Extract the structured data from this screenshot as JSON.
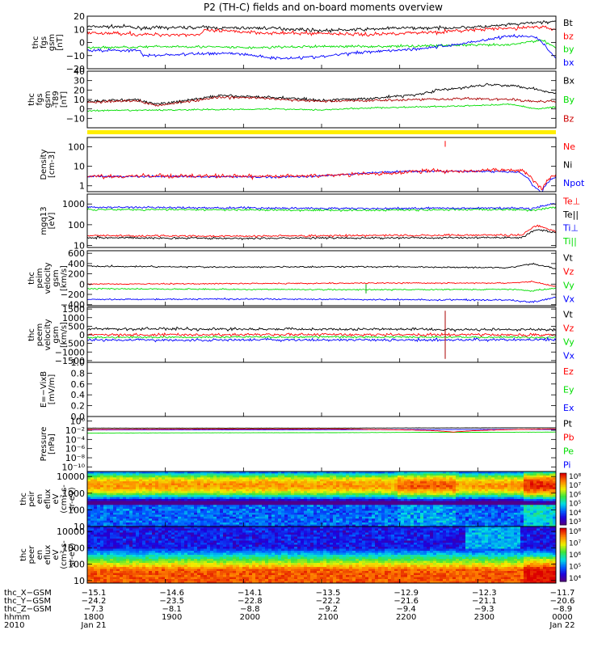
{
  "title": "P2 (TH-C) fields and on-board moments overview",
  "chart_data": [
    {
      "id": "fgs-gsm",
      "type": "line",
      "ylabel": [
        "thc",
        "fgs",
        "gsm",
        "[nT]"
      ],
      "ylim": [
        -20,
        20
      ],
      "yticks": [
        {
          "v": 20,
          "t": "20"
        },
        {
          "v": 10,
          "t": "10"
        },
        {
          "v": 0,
          "t": "0"
        },
        {
          "v": -10,
          "t": "−10"
        },
        {
          "v": -20,
          "t": "−20"
        }
      ],
      "legend": [
        {
          "name": "Bt",
          "color": "#000000"
        },
        {
          "name": "bz",
          "color": "#ff0000"
        },
        {
          "name": "by",
          "color": "#00dd00"
        },
        {
          "name": "bx",
          "color": "#0000ff"
        }
      ],
      "series": [
        {
          "name": "Bt",
          "color": "#000000",
          "noise": 1.2,
          "x": [
            0,
            0.09,
            0.1,
            0.25,
            0.28,
            0.38,
            0.45,
            0.5,
            0.6,
            0.66,
            0.75,
            0.85,
            0.92,
            0.95,
            1.0
          ],
          "y": [
            12,
            12,
            11,
            11.5,
            11,
            11,
            10,
            9,
            10,
            11,
            11,
            12,
            14,
            15,
            16
          ]
        },
        {
          "name": "bz",
          "color": "#ff0000",
          "noise": 1.4,
          "x": [
            0,
            0.09,
            0.1,
            0.24,
            0.25,
            0.35,
            0.4,
            0.5,
            0.6,
            0.66,
            0.75,
            0.85,
            0.92,
            0.96,
            1.0
          ],
          "y": [
            7,
            7,
            6,
            6,
            9,
            8,
            7,
            7,
            6,
            7,
            8,
            10,
            11,
            12,
            10
          ]
        },
        {
          "name": "by",
          "color": "#00dd00",
          "noise": 1.0,
          "x": [
            0,
            0.2,
            0.35,
            0.5,
            0.65,
            0.8,
            0.9,
            0.97,
            1.0
          ],
          "y": [
            -4,
            -3,
            -4,
            -3,
            -3,
            -2,
            -2,
            2,
            -4
          ]
        },
        {
          "name": "bx",
          "color": "#0000ff",
          "noise": 1.2,
          "x": [
            0,
            0.11,
            0.12,
            0.3,
            0.36,
            0.4,
            0.5,
            0.54,
            0.6,
            0.7,
            0.78,
            0.85,
            0.9,
            0.96,
            1.0
          ],
          "y": [
            -6,
            -6,
            -10,
            -8,
            -10,
            -12,
            -11,
            -9,
            -7,
            -5,
            -2,
            2,
            5,
            4,
            -12
          ]
        }
      ]
    },
    {
      "id": "fgs-sm",
      "type": "line",
      "ylabel": [
        "thc",
        "fgs",
        "gsm",
        "-T89",
        "[nT]"
      ],
      "ylim": [
        -20,
        40
      ],
      "yticks": [
        {
          "v": 40,
          "t": "40"
        },
        {
          "v": 30,
          "t": "30"
        },
        {
          "v": 20,
          "t": "20"
        },
        {
          "v": 10,
          "t": "10"
        },
        {
          "v": 0,
          "t": "0"
        },
        {
          "v": -10,
          "t": "−10"
        }
      ],
      "legend": [
        {
          "name": "Bx",
          "color": "#000000"
        },
        {
          "name": "By",
          "color": "#00dd00"
        },
        {
          "name": "Bz",
          "color": "#cc0000"
        }
      ],
      "series": [
        {
          "name": "By",
          "color": "#00dd00",
          "noise": 0.8,
          "x": [
            0,
            0.2,
            0.4,
            0.5,
            0.6,
            0.7,
            0.8,
            0.9,
            0.96,
            1.0
          ],
          "y": [
            -2,
            -1,
            0,
            -1,
            1,
            2,
            3,
            5,
            0,
            2
          ]
        },
        {
          "name": "Bx",
          "color": "#000000",
          "noise": 1.5,
          "x": [
            0,
            0.1,
            0.15,
            0.2,
            0.28,
            0.35,
            0.45,
            0.5,
            0.6,
            0.7,
            0.75,
            0.8,
            0.85,
            0.9,
            0.95,
            1.0
          ],
          "y": [
            8,
            10,
            5,
            8,
            14,
            13,
            11,
            9,
            11,
            15,
            20,
            22,
            26,
            25,
            22,
            16
          ]
        },
        {
          "name": "Bz",
          "color": "#aa0000",
          "noise": 1.4,
          "x": [
            0,
            0.1,
            0.15,
            0.2,
            0.28,
            0.35,
            0.45,
            0.5,
            0.6,
            0.7,
            0.8,
            0.9,
            0.95,
            1.0
          ],
          "y": [
            7,
            9,
            4,
            7,
            12,
            12,
            9,
            8,
            9,
            10,
            11,
            10,
            8,
            8
          ]
        }
      ]
    },
    {
      "id": "density",
      "type": "line",
      "log": true,
      "ylabel": [
        "Density",
        "[cm-3]"
      ],
      "ylim": [
        0.5,
        300
      ],
      "yticks": [
        {
          "v": 100,
          "t": "100"
        },
        {
          "v": 10,
          "t": "10"
        },
        {
          "v": 1,
          "t": "1"
        }
      ],
      "legend": [
        {
          "name": "Ne",
          "color": "#ff0000"
        },
        {
          "name": "Ni",
          "color": "#000000"
        },
        {
          "name": "Npot",
          "color": "#0000ff"
        }
      ],
      "series": [
        {
          "name": "Npot",
          "color": "#0000ff",
          "noise": 0.05,
          "x": [
            0,
            0.2,
            0.4,
            0.5,
            0.6,
            0.68,
            0.75,
            0.85,
            0.92,
            0.95,
            0.97,
            1.0
          ],
          "y": [
            3,
            3,
            2.8,
            3.2,
            4.5,
            5.5,
            5.5,
            5.5,
            5,
            1,
            0.4,
            3
          ]
        },
        {
          "name": "Ne",
          "color": "#ff0000",
          "noise": 0.1,
          "x": [
            0,
            0.2,
            0.4,
            0.5,
            0.6,
            0.66,
            0.72,
            0.8,
            0.9,
            0.93,
            0.95,
            0.97,
            1.0
          ],
          "y": [
            3,
            3.2,
            3,
            3.4,
            4,
            4.5,
            6,
            5.5,
            6.5,
            6,
            2,
            0.6,
            4
          ]
        }
      ]
    },
    {
      "id": "temperature",
      "type": "line",
      "log": true,
      "ylabel": [
        "mgq13",
        "[eV]"
      ],
      "ylim": [
        8,
        3000
      ],
      "yticks": [
        {
          "v": 1000,
          "t": "1000"
        },
        {
          "v": 100,
          "t": "100"
        },
        {
          "v": 10,
          "t": "10"
        }
      ],
      "legend": [
        {
          "name": "Te⊥",
          "color": "#ff0000"
        },
        {
          "name": "Te||",
          "color": "#000000"
        },
        {
          "name": "Ti⊥",
          "color": "#0000ff"
        },
        {
          "name": "Ti||",
          "color": "#00dd00"
        }
      ],
      "series": [
        {
          "name": "Ti||",
          "color": "#00dd00",
          "noise": 0.05,
          "x": [
            0,
            0.3,
            0.6,
            0.9,
            0.95,
            1.0
          ],
          "y": [
            550,
            520,
            500,
            550,
            480,
            700
          ]
        },
        {
          "name": "Ti⊥",
          "color": "#0000ff",
          "noise": 0.05,
          "x": [
            0,
            0.3,
            0.6,
            0.9,
            0.95,
            1.0
          ],
          "y": [
            700,
            650,
            600,
            650,
            600,
            1100
          ]
        },
        {
          "name": "Te||",
          "color": "#000000",
          "noise": 0.05,
          "x": [
            0,
            0.3,
            0.6,
            0.85,
            0.93,
            0.96,
            1.0
          ],
          "y": [
            24,
            22,
            23,
            24,
            24,
            60,
            40
          ]
        },
        {
          "name": "Te⊥",
          "color": "#ff0000",
          "noise": 0.05,
          "x": [
            0,
            0.3,
            0.6,
            0.85,
            0.93,
            0.96,
            1.0
          ],
          "y": [
            30,
            28,
            30,
            32,
            32,
            90,
            45
          ]
        }
      ]
    },
    {
      "id": "ion-velocity",
      "type": "line",
      "ylabel": [
        "thc",
        "peim",
        "velocity",
        "gsm",
        "[km/s]"
      ],
      "ylim": [
        -420,
        650
      ],
      "yticks": [
        {
          "v": 600,
          "t": "600"
        },
        {
          "v": 400,
          "t": "400"
        },
        {
          "v": 200,
          "t": "200"
        },
        {
          "v": 0,
          "t": "0"
        },
        {
          "v": -200,
          "t": "−200"
        },
        {
          "v": -400,
          "t": "−400"
        }
      ],
      "legend": [
        {
          "name": "Vt",
          "color": "#000000"
        },
        {
          "name": "Vz",
          "color": "#ff0000"
        },
        {
          "name": "Vy",
          "color": "#00dd00"
        },
        {
          "name": "Vx",
          "color": "#0000ff"
        }
      ],
      "series": [
        {
          "name": "Vt",
          "color": "#000000",
          "noise": 15,
          "x": [
            0,
            0.3,
            0.6,
            0.9,
            0.95,
            1.0
          ],
          "y": [
            350,
            330,
            340,
            320,
            400,
            300
          ]
        },
        {
          "name": "Vz",
          "color": "#ff0000",
          "noise": 12,
          "x": [
            0,
            0.3,
            0.6,
            0.9,
            0.95,
            1.0
          ],
          "y": [
            0,
            10,
            20,
            20,
            50,
            -50
          ]
        },
        {
          "name": "Vy",
          "color": "#00dd00",
          "noise": 12,
          "x": [
            0,
            0.3,
            0.6,
            0.9,
            0.95,
            1.0
          ],
          "y": [
            -90,
            -100,
            -110,
            -100,
            -130,
            -80
          ]
        },
        {
          "name": "Vx",
          "color": "#0000ff",
          "noise": 15,
          "x": [
            0,
            0.3,
            0.6,
            0.9,
            0.95,
            1.0
          ],
          "y": [
            -300,
            -290,
            -300,
            -310,
            -350,
            -250
          ]
        }
      ]
    },
    {
      "id": "electron-velocity",
      "type": "line",
      "ylabel": [
        "thc",
        "peem",
        "velocity",
        "gsm",
        "[km/s]"
      ],
      "ylim": [
        -1600,
        1600
      ],
      "yticks": [
        {
          "v": 1500,
          "t": "1500"
        },
        {
          "v": 1000,
          "t": "1000"
        },
        {
          "v": 500,
          "t": "500"
        },
        {
          "v": 0,
          "t": "0"
        },
        {
          "v": -500,
          "t": "−500"
        },
        {
          "v": -1000,
          "t": "−1000"
        },
        {
          "v": -1500,
          "t": "−1500"
        }
      ],
      "legend": [
        {
          "name": "Vt",
          "color": "#000000"
        },
        {
          "name": "Vz",
          "color": "#ff0000"
        },
        {
          "name": "Vy",
          "color": "#00dd00"
        },
        {
          "name": "Vx",
          "color": "#0000ff"
        }
      ],
      "series": [
        {
          "name": "Vt",
          "color": "#000000",
          "noise": 80,
          "x": [
            0,
            0.5,
            1.0
          ],
          "y": [
            350,
            330,
            300
          ]
        },
        {
          "name": "Vy",
          "color": "#00dd00",
          "noise": 60,
          "x": [
            0,
            0.5,
            1.0
          ],
          "y": [
            -150,
            -120,
            -150
          ]
        },
        {
          "name": "Vx",
          "color": "#0000ff",
          "noise": 80,
          "x": [
            0,
            0.5,
            1.0
          ],
          "y": [
            -300,
            -300,
            -280
          ]
        },
        {
          "name": "Vz",
          "color": "#ff0000",
          "noise": 80,
          "x": [
            0,
            0.5,
            1.0
          ],
          "y": [
            0,
            10,
            0
          ]
        }
      ]
    },
    {
      "id": "efield",
      "type": "line",
      "ylabel": [
        "E=−VixB",
        "[mV/m]"
      ],
      "ylim": [
        0,
        1
      ],
      "yticks": [
        {
          "v": 1.0,
          "t": "1.0"
        },
        {
          "v": 0.8,
          "t": "0.8"
        },
        {
          "v": 0.6,
          "t": "0.6"
        },
        {
          "v": 0.4,
          "t": "0.4"
        },
        {
          "v": 0.2,
          "t": "0.2"
        },
        {
          "v": 0.0,
          "t": "0.0"
        }
      ],
      "legend": [
        {
          "name": "Ez",
          "color": "#ff0000"
        },
        {
          "name": "Ey",
          "color": "#00dd00"
        },
        {
          "name": "Ex",
          "color": "#0000ff"
        }
      ],
      "series": []
    },
    {
      "id": "pressure",
      "type": "line",
      "log": true,
      "ylabel": [
        "Pressure",
        "[nPa]"
      ],
      "ylim": [
        1e-11,
        10
      ],
      "yticks": [
        {
          "v": 1,
          "t": "10⁰"
        },
        {
          "v": 0.01,
          "t": "10⁻²"
        },
        {
          "v": 0.0001,
          "t": "10⁻⁴"
        },
        {
          "v": 1e-06,
          "t": "10⁻⁶"
        },
        {
          "v": 1e-08,
          "t": "10⁻⁸"
        },
        {
          "v": 1e-10,
          "t": "10⁻¹⁰"
        }
      ],
      "legend": [
        {
          "name": "Pt",
          "color": "#000000"
        },
        {
          "name": "Pb",
          "color": "#ff0000"
        },
        {
          "name": "Pe",
          "color": "#00dd00"
        },
        {
          "name": "Pi",
          "color": "#0000ff"
        }
      ],
      "series": [
        {
          "name": "Pe",
          "color": "#00dd00",
          "noise": 0.02,
          "x": [
            0,
            0.5,
            1.0
          ],
          "y": [
            0.0025,
            0.003,
            0.004
          ]
        },
        {
          "name": "Pi",
          "color": "#0000ff",
          "noise": 0.02,
          "x": [
            0,
            0.5,
            1.0
          ],
          "y": [
            0.012,
            0.013,
            0.015
          ]
        },
        {
          "name": "Pt",
          "color": "#000000",
          "noise": 0.02,
          "x": [
            0,
            0.5,
            1.0
          ],
          "y": [
            0.03,
            0.03,
            0.035
          ]
        },
        {
          "name": "Pb",
          "color": "#ff0000",
          "noise": 0.03,
          "x": [
            0,
            0.5,
            0.72,
            0.78,
            0.85,
            1.0
          ],
          "y": [
            0.015,
            0.02,
            0.01,
            0.004,
            0.01,
            0.02
          ]
        }
      ]
    },
    {
      "id": "ion-spectrogram",
      "type": "heatmap",
      "ylabel": [
        "thc",
        "peir",
        "en",
        "eflux",
        "eV",
        "(cm²-s-",
        "sr-eV)"
      ],
      "ylim": [
        10,
        20000
      ],
      "yticks": [
        {
          "v": 10000,
          "t": "10000"
        },
        {
          "v": 1000,
          "t": "1000"
        },
        {
          "v": 100,
          "t": "100"
        },
        {
          "v": 10,
          "t": "10"
        }
      ],
      "colorbar": {
        "ticks": [
          "10⁸",
          "10⁷",
          "10⁶",
          "10⁵",
          "10⁴",
          "10³"
        ],
        "range": [
          3,
          8
        ]
      },
      "peak_energy_ev": 3000
    },
    {
      "id": "electron-spectrogram",
      "type": "heatmap",
      "ylabel": [
        "thc",
        "peer",
        "en",
        "eflux",
        "eV",
        "(cm²-s-",
        "sr-eV)"
      ],
      "ylim": [
        7,
        20000
      ],
      "yticks": [
        {
          "v": 10000,
          "t": "10000"
        },
        {
          "v": 1000,
          "t": "1000"
        },
        {
          "v": 100,
          "t": "100"
        },
        {
          "v": 10,
          "t": "10"
        }
      ],
      "colorbar": {
        "ticks": [
          "10⁸",
          "10⁷",
          "10⁶",
          "10⁵",
          "10⁴"
        ],
        "range": [
          3.5,
          8.5
        ]
      },
      "peak_energy_ev": 40
    }
  ],
  "xaxis": {
    "row_labels": [
      "thc_X−GSM",
      "thc_Y−GSM",
      "thc_Z−GSM",
      "hhmm",
      "2010"
    ],
    "ticks": [
      [
        "−15.1",
        "−24.2",
        "−7.3",
        "1800",
        "Jan 21"
      ],
      [
        "−14.6",
        "−23.5",
        "−8.1",
        "1900",
        ""
      ],
      [
        "−14.1",
        "−22.8",
        "−8.8",
        "2000",
        ""
      ],
      [
        "−13.5",
        "−22.2",
        "−9.2",
        "2100",
        ""
      ],
      [
        "−12.9",
        "−21.6",
        "−9.4",
        "2200",
        ""
      ],
      [
        "−12.3",
        "−21.1",
        "−9.3",
        "2300",
        ""
      ],
      [
        "−11.7",
        "−20.6",
        "−8.9",
        "0000",
        "Jan 22"
      ]
    ]
  },
  "colors": {
    "flag_bar": "#ffee00"
  }
}
